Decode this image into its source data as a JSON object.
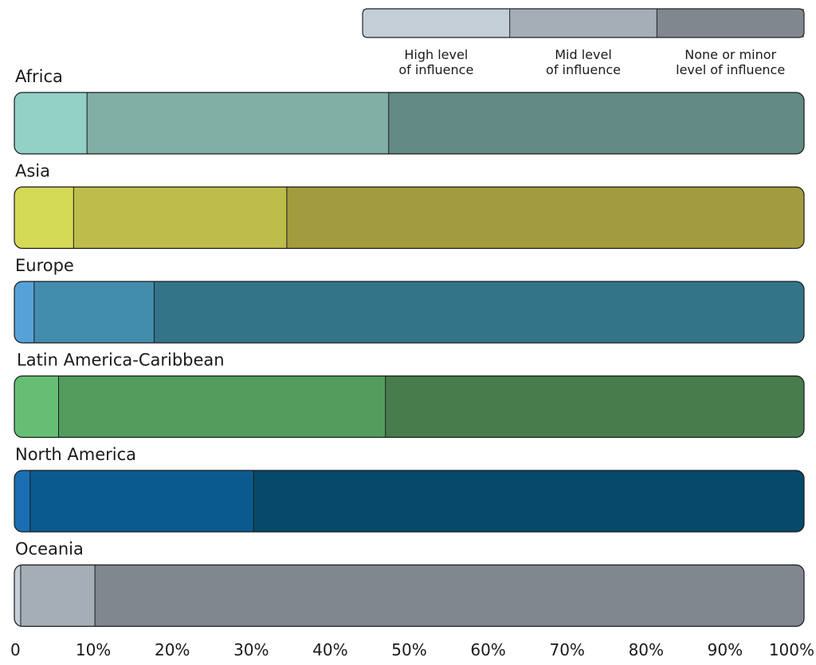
{
  "chart_data": {
    "type": "bar",
    "orientation": "horizontal",
    "stacked": true,
    "legend": {
      "placement": "top-right",
      "entries": [
        {
          "lines": [
            "High level",
            "of influence"
          ],
          "color": "#c3ced6"
        },
        {
          "lines": [
            "Mid level",
            "of influence"
          ],
          "color": "#a5aeb6"
        },
        {
          "lines": [
            "None or minor",
            "level of influence"
          ],
          "color": "#80878f"
        }
      ]
    },
    "categories": [
      "Africa",
      "Asia",
      "Europe",
      "Latin America-Caribbean",
      "North America",
      "Oceania"
    ],
    "series": [
      {
        "values": [
          9.2,
          7.5,
          2.5,
          5.6,
          2.0,
          0.8
        ]
      },
      {
        "values": [
          38.2,
          27.0,
          15.2,
          41.4,
          28.3,
          9.4
        ]
      },
      {
        "values": [
          52.6,
          65.5,
          82.3,
          53.0,
          69.7,
          89.8
        ]
      }
    ],
    "bar_colors": [
      [
        "#93d0c6",
        "#81afa6",
        "#638a84"
      ],
      [
        "#d4da56",
        "#bebd4c",
        "#a39c3e"
      ],
      [
        "#56a2d8",
        "#428dad",
        "#347488"
      ],
      [
        "#66be75",
        "#539c5e",
        "#487c4d"
      ],
      [
        "#1a6eb2",
        "#0a5a8f",
        "#064969"
      ],
      [
        "#c3ced6",
        "#a5aeb6",
        "#80878f"
      ]
    ],
    "x_ticks": [
      "0",
      "10%",
      "20%",
      "30%",
      "40%",
      "50%",
      "60%",
      "70%",
      "80%",
      "90%",
      "100%"
    ],
    "xlim": [
      0,
      100
    ],
    "grid": false
  }
}
